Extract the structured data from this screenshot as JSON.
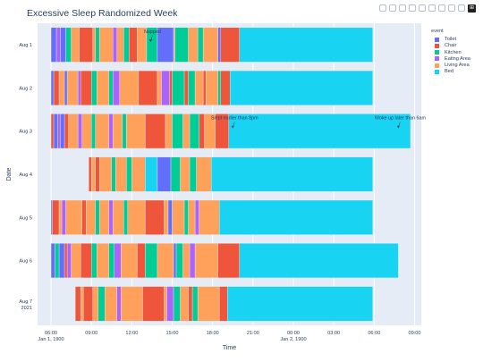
{
  "title": "Excessive Sleep Randomized Week",
  "modebar": {
    "icons": [
      "camera-icon",
      "zoom-icon",
      "pan-icon",
      "box-select-icon",
      "lasso-icon",
      "zoom-in-icon",
      "zoom-out-icon",
      "autoscale-icon",
      "reset-axes-icon",
      "plotly-logo-icon"
    ]
  },
  "colors": {
    "Toilet": "#636efa",
    "Chair": "#ef553b",
    "Kitchen": "#00cc96",
    "Eating Area": "#ab63fa",
    "Living Area": "#ffa15a",
    "Bed": "#19d3f3"
  },
  "chart_data": {
    "type": "bar",
    "orientation": "h",
    "title": "Excessive Sleep Randomized Week",
    "xlabel": "Time",
    "ylabel": "Date",
    "x_range": [
      "05:00",
      "09:30 (+1 day)"
    ],
    "x_ticks": [
      {
        "label": "06:00",
        "sublabel": "Jan 1, 1900",
        "hour": 6
      },
      {
        "label": "09:00",
        "sublabel": "",
        "hour": 9
      },
      {
        "label": "12:00",
        "sublabel": "",
        "hour": 12
      },
      {
        "label": "15:00",
        "sublabel": "",
        "hour": 15
      },
      {
        "label": "18:00",
        "sublabel": "",
        "hour": 18
      },
      {
        "label": "21:00",
        "sublabel": "",
        "hour": 21
      },
      {
        "label": "00:00",
        "sublabel": "Jan 2, 1900",
        "hour": 24
      },
      {
        "label": "03:00",
        "sublabel": "",
        "hour": 27
      },
      {
        "label": "06:00",
        "sublabel": "",
        "hour": 30
      },
      {
        "label": "09:00",
        "sublabel": "",
        "hour": 33
      }
    ],
    "legend": {
      "title": "event",
      "position": "right",
      "entries": [
        "Toilet",
        "Chair",
        "Kitchen",
        "Eating Area",
        "Living Area",
        "Bed"
      ]
    },
    "categories": [
      {
        "label": "Aug 1",
        "sub": ""
      },
      {
        "label": "Aug 2",
        "sub": ""
      },
      {
        "label": "Aug 3",
        "sub": ""
      },
      {
        "label": "Aug 4",
        "sub": ""
      },
      {
        "label": "Aug 5",
        "sub": ""
      },
      {
        "label": "Aug 6",
        "sub": ""
      },
      {
        "label": "Aug 7",
        "sub": "2021"
      }
    ],
    "annotations": [
      {
        "text": "Napped",
        "date": "Aug 1",
        "hour": 13.4
      },
      {
        "text": "Slept earlier than 8pm",
        "date": "Aug 3",
        "hour": 19.5
      },
      {
        "text": "Woke up later than 6am",
        "date": "Aug 3",
        "hour": 31.8
      }
    ],
    "rows": [
      [
        [
          "Toilet",
          6.0,
          6.4
        ],
        [
          "Eating Area",
          6.4,
          6.7
        ],
        [
          "Toilet",
          6.7,
          7.1
        ],
        [
          "Kitchen",
          7.1,
          7.5
        ],
        [
          "Living Area",
          7.5,
          8.1
        ],
        [
          "Chair",
          8.1,
          9.1
        ],
        [
          "Living Area",
          9.1,
          9.3
        ],
        [
          "Kitchen",
          9.3,
          9.6
        ],
        [
          "Living Area",
          9.6,
          10.6
        ],
        [
          "Eating Area",
          10.6,
          10.9
        ],
        [
          "Living Area",
          10.9,
          11.4
        ],
        [
          "Kitchen",
          11.4,
          11.8
        ],
        [
          "Chair",
          11.8,
          12.4
        ],
        [
          "Living Area",
          12.4,
          13.1
        ],
        [
          "Kitchen",
          13.1,
          13.9
        ],
        [
          "Toilet",
          13.9,
          15.1
        ],
        [
          "Living Area",
          15.1,
          15.2
        ],
        [
          "Kitchen",
          15.2,
          16.2
        ],
        [
          "Living Area",
          16.2,
          16.9
        ],
        [
          "Kitchen",
          16.9,
          17.3
        ],
        [
          "Living Area",
          17.3,
          18.4
        ],
        [
          "Toilet",
          18.4,
          18.6
        ],
        [
          "Chair",
          18.6,
          20.0
        ],
        [
          "Bed",
          20.0,
          29.9
        ]
      ],
      [
        [
          "Toilet",
          6.0,
          6.2
        ],
        [
          "Chair",
          6.2,
          6.6
        ],
        [
          "Living Area",
          6.6,
          7.0
        ],
        [
          "Toilet",
          7.0,
          7.2
        ],
        [
          "Living Area",
          7.2,
          8.0
        ],
        [
          "Eating Area",
          8.0,
          8.2
        ],
        [
          "Chair",
          8.2,
          9.0
        ],
        [
          "Kitchen",
          9.0,
          9.4
        ],
        [
          "Living Area",
          9.4,
          10.3
        ],
        [
          "Kitchen",
          10.3,
          10.6
        ],
        [
          "Eating Area",
          10.6,
          11.1
        ],
        [
          "Living Area",
          11.1,
          12.5
        ],
        [
          "Chair",
          12.5,
          13.9
        ],
        [
          "Living Area",
          13.9,
          14.2
        ],
        [
          "Eating Area",
          14.2,
          14.8
        ],
        [
          "Chair",
          14.8,
          15.0
        ],
        [
          "Kitchen",
          15.0,
          15.9
        ],
        [
          "Chair",
          15.9,
          16.2
        ],
        [
          "Kitchen",
          16.2,
          16.7
        ],
        [
          "Living Area",
          16.7,
          17.3
        ],
        [
          "Chair",
          17.3,
          17.5
        ],
        [
          "Living Area",
          17.5,
          18.4
        ],
        [
          "Kitchen",
          18.4,
          18.6
        ],
        [
          "Chair",
          18.6,
          19.3
        ],
        [
          "Bed",
          19.3,
          29.9
        ]
      ],
      [
        [
          "Chair",
          6.0,
          6.2
        ],
        [
          "Toilet",
          6.2,
          6.5
        ],
        [
          "Eating Area",
          6.5,
          6.7
        ],
        [
          "Toilet",
          6.7,
          7.0
        ],
        [
          "Chair",
          7.0,
          7.3
        ],
        [
          "Living Area",
          7.3,
          8.0
        ],
        [
          "Eating Area",
          8.0,
          8.3
        ],
        [
          "Living Area",
          8.3,
          9.0
        ],
        [
          "Kitchen",
          9.0,
          9.3
        ],
        [
          "Living Area",
          9.3,
          10.3
        ],
        [
          "Eating Area",
          10.3,
          10.6
        ],
        [
          "Living Area",
          10.6,
          11.3
        ],
        [
          "Kitchen",
          11.3,
          11.6
        ],
        [
          "Living Area",
          11.6,
          13.0
        ],
        [
          "Chair",
          13.0,
          14.5
        ],
        [
          "Living Area",
          14.5,
          15.0
        ],
        [
          "Kitchen",
          15.0,
          15.8
        ],
        [
          "Living Area",
          15.8,
          16.3
        ],
        [
          "Kitchen",
          16.3,
          17.0
        ],
        [
          "Chair",
          17.0,
          17.4
        ],
        [
          "Living Area",
          17.4,
          18.2
        ],
        [
          "Chair",
          18.2,
          19.2
        ],
        [
          "Bed",
          19.2,
          32.7
        ]
      ],
      [
        [
          "Chair",
          8.8,
          9.0
        ],
        [
          "Living Area",
          9.0,
          9.3
        ],
        [
          "Chair",
          9.3,
          9.6
        ],
        [
          "Living Area",
          9.6,
          10.5
        ],
        [
          "Kitchen",
          10.5,
          10.8
        ],
        [
          "Living Area",
          10.8,
          11.6
        ],
        [
          "Kitchen",
          11.6,
          12.0
        ],
        [
          "Living Area",
          12.0,
          13.0
        ],
        [
          "Bed",
          13.0,
          13.9
        ],
        [
          "Toilet",
          13.9,
          14.9
        ],
        [
          "Kitchen",
          14.9,
          15.6
        ],
        [
          "Living Area",
          15.6,
          16.3
        ],
        [
          "Kitchen",
          16.3,
          16.8
        ],
        [
          "Living Area",
          16.8,
          17.9
        ],
        [
          "Bed",
          17.9,
          29.9
        ]
      ],
      [
        [
          "Toilet",
          6.0,
          6.1
        ],
        [
          "Chair",
          6.1,
          6.6
        ],
        [
          "Living Area",
          6.6,
          6.8
        ],
        [
          "Eating Area",
          6.8,
          7.1
        ],
        [
          "Living Area",
          7.1,
          8.3
        ],
        [
          "Chair",
          8.3,
          8.6
        ],
        [
          "Living Area",
          8.6,
          9.3
        ],
        [
          "Kitchen",
          9.3,
          9.6
        ],
        [
          "Living Area",
          9.6,
          10.3
        ],
        [
          "Eating Area",
          10.3,
          10.6
        ],
        [
          "Living Area",
          10.6,
          11.4
        ],
        [
          "Kitchen",
          11.4,
          11.7
        ],
        [
          "Living Area",
          11.7,
          13.0
        ],
        [
          "Chair",
          13.0,
          14.4
        ],
        [
          "Living Area",
          14.4,
          14.7
        ],
        [
          "Toilet",
          14.7,
          15.0
        ],
        [
          "Living Area",
          15.0,
          15.9
        ],
        [
          "Kitchen",
          15.9,
          16.2
        ],
        [
          "Living Area",
          16.2,
          16.7
        ],
        [
          "Eating Area",
          16.7,
          17.0
        ],
        [
          "Living Area",
          17.0,
          18.5
        ],
        [
          "Bed",
          18.5,
          29.9
        ]
      ],
      [
        [
          "Toilet",
          6.0,
          6.3
        ],
        [
          "Kitchen",
          6.3,
          6.6
        ],
        [
          "Toilet",
          6.6,
          7.0
        ],
        [
          "Chair",
          7.0,
          7.2
        ],
        [
          "Eating Area",
          7.2,
          7.5
        ],
        [
          "Living Area",
          7.5,
          8.2
        ],
        [
          "Chair",
          8.2,
          9.0
        ],
        [
          "Kitchen",
          9.0,
          9.4
        ],
        [
          "Living Area",
          9.4,
          10.3
        ],
        [
          "Kitchen",
          10.3,
          10.7
        ],
        [
          "Eating Area",
          10.7,
          11.2
        ],
        [
          "Living Area",
          11.2,
          12.4
        ],
        [
          "Chair",
          12.4,
          13.0
        ],
        [
          "Kitchen",
          13.0,
          13.9
        ],
        [
          "Living Area",
          13.9,
          15.1
        ],
        [
          "Toilet",
          15.1,
          15.3
        ],
        [
          "Kitchen",
          15.3,
          15.8
        ],
        [
          "Living Area",
          15.8,
          16.3
        ],
        [
          "Eating Area",
          16.3,
          16.7
        ],
        [
          "Living Area",
          16.7,
          18.4
        ],
        [
          "Chair",
          18.4,
          20.0
        ],
        [
          "Bed",
          20.0,
          31.8
        ]
      ],
      [
        [
          "Chair",
          7.8,
          8.2
        ],
        [
          "Living Area",
          8.2,
          8.4
        ],
        [
          "Chair",
          8.4,
          9.1
        ],
        [
          "Living Area",
          9.1,
          9.5
        ],
        [
          "Kitchen",
          9.5,
          10.0
        ],
        [
          "Living Area",
          10.0,
          10.9
        ],
        [
          "Eating Area",
          10.9,
          11.2
        ],
        [
          "Living Area",
          11.2,
          12.8
        ],
        [
          "Chair",
          12.8,
          14.4
        ],
        [
          "Living Area",
          14.4,
          14.6
        ],
        [
          "Eating Area",
          14.6,
          15.1
        ],
        [
          "Kitchen",
          15.1,
          15.6
        ],
        [
          "Living Area",
          15.6,
          16.2
        ],
        [
          "Chair",
          16.2,
          16.5
        ],
        [
          "Kitchen",
          16.5,
          16.9
        ],
        [
          "Living Area",
          16.9,
          18.5
        ],
        [
          "Chair",
          18.5,
          19.1
        ],
        [
          "Bed",
          19.1,
          29.9
        ]
      ]
    ]
  }
}
